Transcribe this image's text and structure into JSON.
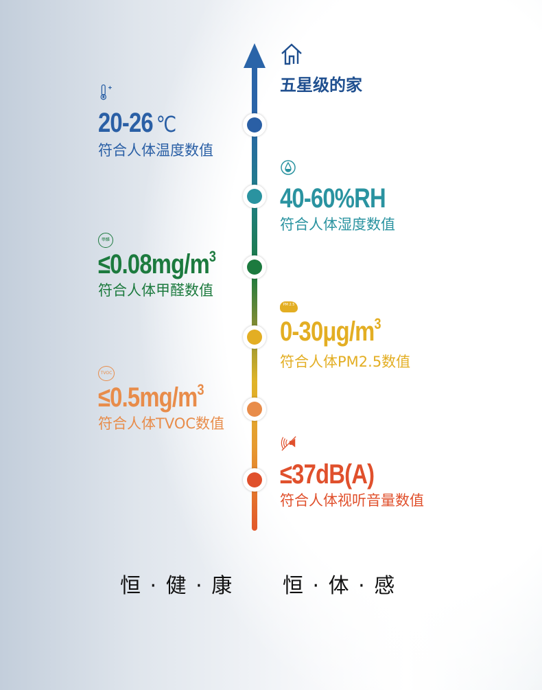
{
  "header": {
    "icon": "home-icon",
    "title": "五星级的家"
  },
  "metrics": [
    {
      "icon": "thermometer-icon",
      "value": "20-26",
      "unit": "℃",
      "desc": "符合人体温度数值",
      "color": "#2a5fa5"
    },
    {
      "icon": "water-drop-icon",
      "value": "40-60%RH",
      "desc": "符合人体湿度数值",
      "color": "#2a93a0"
    },
    {
      "icon": "formaldehyde-icon",
      "icon_label": "甲醛",
      "value": "≤0.08mg/m",
      "sup": "3",
      "desc": "符合人体甲醛数值",
      "color": "#1c7a3e"
    },
    {
      "icon": "pm25-cloud-icon",
      "icon_label": "PM 2.5",
      "value": "0-30μg/m",
      "sup": "3",
      "desc": "符合人体PM2.5数值",
      "color": "#e3ae23"
    },
    {
      "icon": "tvoc-icon",
      "icon_label": "TVOC",
      "value": "≤0.5mg/m",
      "sup": "3",
      "desc": "符合人体TVOC数值",
      "color": "#e88c4a"
    },
    {
      "icon": "mute-speaker-icon",
      "value": "≤37dB(A)",
      "desc": "符合人体视听音量数值",
      "color": "#e0502c"
    }
  ],
  "dot_colors": [
    "#2a5fa5",
    "#2a93a0",
    "#1c7a3e",
    "#e3ae23",
    "#e88c4a",
    "#e0502c"
  ],
  "footer": {
    "left": "恒 · 健 · 康",
    "right": "恒 · 体 · 感"
  }
}
